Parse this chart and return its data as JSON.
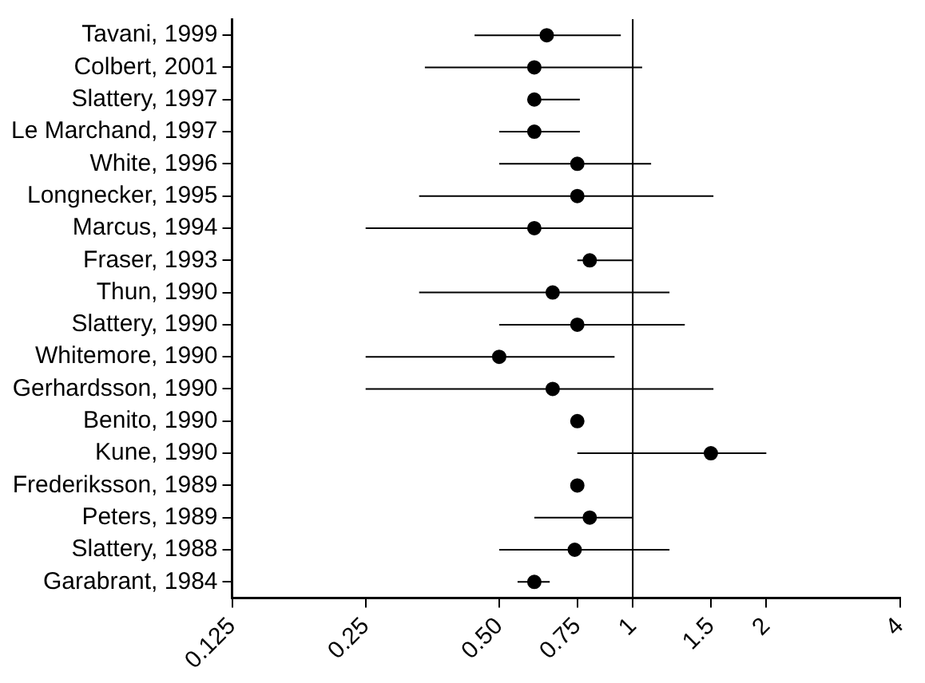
{
  "chart_data": {
    "type": "scatter",
    "orientation": "horizontal",
    "log": "x",
    "color": "#000000",
    "marker": "circle",
    "grid": false,
    "legend": false,
    "categories": [
      "Tavani, 1999",
      "Colbert, 2001",
      "Slattery, 1997",
      "Le Marchand, 1997",
      "White, 1996",
      "Longnecker, 1995",
      "Marcus, 1994",
      "Fraser, 1993",
      "Thun, 1990",
      "Slattery, 1990",
      "Whitemore, 1990",
      "Gerhardsson, 1990",
      "Benito, 1990",
      "Kune, 1990",
      "Frederiksson, 1989",
      "Peters, 1989",
      "Slattery, 1988",
      "Garabrant, 1984"
    ],
    "values": [
      0.64,
      0.6,
      0.6,
      0.6,
      0.75,
      0.75,
      0.6,
      0.8,
      0.66,
      0.75,
      0.5,
      0.66,
      0.75,
      1.5,
      0.75,
      0.8,
      0.74,
      0.6
    ],
    "errors": [
      [
        0.44,
        0.94
      ],
      [
        0.34,
        1.05
      ],
      [
        0.6,
        0.76
      ],
      [
        0.5,
        0.76
      ],
      [
        0.5,
        1.1
      ],
      [
        0.33,
        1.52
      ],
      [
        0.25,
        1.0
      ],
      [
        0.75,
        1.0
      ],
      [
        0.33,
        1.21
      ],
      [
        0.5,
        1.31
      ],
      [
        0.25,
        0.91
      ],
      [
        0.25,
        1.52
      ],
      null,
      [
        0.75,
        2.0
      ],
      null,
      [
        0.6,
        1.0
      ],
      [
        0.5,
        1.21
      ],
      [
        0.55,
        0.65
      ]
    ],
    "xlim": [
      0.125,
      4
    ],
    "xticks": [
      0.125,
      0.25,
      {
        "value": 0.5,
        "label": "0.50"
      },
      0.75,
      1,
      1.5,
      2,
      4
    ],
    "ref_lines": [
      {
        "axis": "x",
        "value": 1
      }
    ]
  }
}
